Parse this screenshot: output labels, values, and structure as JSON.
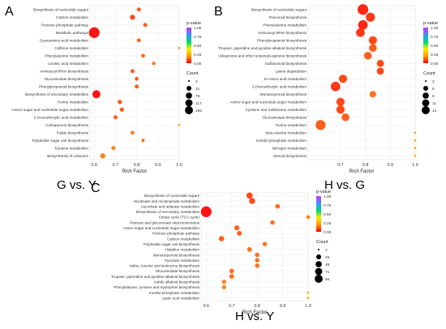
{
  "figure": {
    "legend_title": "p-value",
    "count_title": "Count",
    "rich_factor_label": "Rich Factor",
    "colorbar_ticks": [
      "1.00",
      "0.75",
      "0.50",
      "0.25",
      "0.00"
    ],
    "colors": {
      "low_p": "#ff0000",
      "mid_p": "#ff9900",
      "high_p": "#cc33ff",
      "grid": "#e6e6e6"
    }
  },
  "chart_data": [
    {
      "type": "scatter",
      "panel_label": "A",
      "caption": "G vs. Y",
      "xlabel": "Rich Factor",
      "xlim": [
        0.58,
        1.0
      ],
      "xticks": [
        {
          "v": 0.6,
          "label": "0.6"
        },
        {
          "v": 0.7,
          "label": "0.7"
        },
        {
          "v": 0.8,
          "label": "0.8"
        },
        {
          "v": 0.9,
          "label": "0.9"
        },
        {
          "v": 1.0,
          "label": "1.0"
        }
      ],
      "size_legend": [
        3,
        41,
        79,
        117,
        155
      ],
      "size_range": [
        3,
        155
      ],
      "categories": [
        "Biosynthesis of nucleotide sugars",
        "Carbon metabolism",
        "Pentose phosphate pathway",
        "Metabolic pathways",
        "Cyanoamino acid metabolism",
        "Caffeine metabolism",
        "Phenylalanine metabolism",
        "Linoleic acid metabolism",
        "Aminoacyl-tRNA biosynthesis",
        "Glucosinolate biosynthesis",
        "Phenylpropanoid biosynthesis",
        "Biosynthesis of secondary metabolites",
        "Purine metabolism",
        "Amino sugar and nucleotide sugar metabolism",
        "2-Oxocarboxylic acid metabolism",
        "Carbapenem biosynthesis",
        "Folate biosynthesis",
        "Polyketide sugar unit biosynthesis",
        "Tyrosine metabolism",
        "Biosynthesis of cofactors"
      ],
      "x": [
        0.81,
        0.78,
        0.84,
        0.6,
        0.81,
        1.0,
        0.83,
        0.88,
        0.78,
        0.8,
        0.8,
        0.61,
        0.72,
        0.73,
        0.7,
        1.0,
        0.78,
        0.83,
        0.69,
        0.64
      ],
      "p": [
        0.2,
        0.15,
        0.2,
        0.0,
        0.2,
        0.35,
        0.2,
        0.25,
        0.2,
        0.2,
        0.2,
        0.0,
        0.2,
        0.2,
        0.2,
        0.4,
        0.25,
        0.25,
        0.3,
        0.3
      ],
      "count": [
        10,
        20,
        10,
        155,
        8,
        3,
        8,
        6,
        10,
        8,
        10,
        75,
        12,
        12,
        10,
        3,
        8,
        5,
        10,
        20
      ]
    },
    {
      "type": "scatter",
      "panel_label": "B",
      "caption": "H vs. G",
      "xlabel": "Rich Factor",
      "xlim": [
        0.57,
        1.0
      ],
      "xticks": [
        {
          "v": 0.7,
          "label": "0.7"
        },
        {
          "v": 0.8,
          "label": "0.8"
        },
        {
          "v": 0.9,
          "label": "0.9"
        },
        {
          "v": 1.0,
          "label": "1.0"
        }
      ],
      "size_legend": [
        2,
        5,
        8,
        11,
        14
      ],
      "size_range": [
        2,
        14
      ],
      "categories": [
        "Biosynthesis of nucleotide sugars",
        "Flavonoid biosynthesis",
        "Phenylalanine metabolism",
        "Aminoacyl-tRNA biosynthesis",
        "Phenylpropanoid biosynthesis",
        "Tropane, piperidine and pyridine alkaloid biosynthesis",
        "Ubiquinone and other terpenoid-quinone biosynthesis",
        "Isoflavonoid biosynthesis",
        "Lysine degradation",
        "D-Amino acid metabolism",
        "2-Oxocarboxylic acid metabolism",
        "Monoterpenoid biosynthesis",
        "Amino sugar and nucleotide sugar metabolism",
        "Cysteine and methionine metabolism",
        "Glucosinolate biosynthesis",
        "Purine metabolism",
        "beta-Alanine metabolism",
        "Inositol phosphate metabolism",
        "Nitrogen metabolism",
        "Steroid biosynthesis"
      ],
      "x": [
        0.79,
        0.82,
        0.79,
        0.78,
        0.83,
        0.83,
        0.81,
        0.86,
        0.86,
        0.71,
        0.68,
        0.83,
        0.7,
        0.7,
        0.72,
        0.62,
        1.0,
        1.0,
        1.0,
        1.0
      ],
      "p": [
        0.05,
        0.1,
        0.05,
        0.1,
        0.15,
        0.2,
        0.2,
        0.15,
        0.15,
        0.15,
        0.1,
        0.25,
        0.15,
        0.15,
        0.2,
        0.2,
        0.4,
        0.4,
        0.4,
        0.4
      ],
      "count": [
        14,
        10,
        11,
        9,
        8,
        7,
        7,
        6,
        6,
        8,
        11,
        5,
        8,
        8,
        7,
        12,
        2,
        2,
        2,
        2
      ]
    },
    {
      "type": "scatter",
      "panel_label": "C",
      "caption": "H vs. Y",
      "xlabel": "Rich Factor",
      "xlim": [
        0.58,
        1.0
      ],
      "xticks": [
        {
          "v": 0.6,
          "label": "0.6"
        },
        {
          "v": 0.7,
          "label": "0.7"
        },
        {
          "v": 0.8,
          "label": "0.8"
        },
        {
          "v": 0.9,
          "label": "0.9"
        },
        {
          "v": 1.0,
          "label": "1.0"
        }
      ],
      "size_legend": [
        2,
        25,
        48,
        71,
        94
      ],
      "size_range": [
        2,
        94
      ],
      "categories": [
        "Biosynthesis of nucleotide sugars",
        "Nicotinate and nicotinamide metabolism",
        "Ascorbate and aldarate metabolism",
        "Biosynthesis of secondary metabolites",
        "Citrate cycle (TCA cycle)",
        "Pentose and glucuronate interconversions",
        "Amino sugar and nucleotide sugar metabolism",
        "Pentose phosphate pathway",
        "Carbon metabolism",
        "Polyketide sugar unit biosynthesis",
        "Histidine metabolism",
        "Monoterpenoid biosynthesis",
        "Pyruvate metabolism",
        "Valine, leucine and isoleucine biosynthesis",
        "Glucosinolate biosynthesis",
        "Tropane, piperidine and pyridine alkaloid biosynthesis",
        "Indole alkaloid biosynthesis",
        "Phenylalanine, tyrosine and tryptophan biosynthesis",
        "Inositol phosphate metabolism",
        "Lipoic acid metabolism"
      ],
      "x": [
        0.77,
        0.78,
        0.88,
        0.6,
        1.0,
        0.86,
        0.72,
        0.73,
        0.66,
        0.83,
        0.77,
        0.8,
        0.8,
        0.8,
        0.7,
        0.7,
        0.67,
        0.67,
        1.0,
        1.0
      ],
      "p": [
        0.15,
        0.15,
        0.25,
        0.0,
        0.3,
        0.25,
        0.2,
        0.2,
        0.2,
        0.25,
        0.25,
        0.25,
        0.25,
        0.25,
        0.25,
        0.25,
        0.3,
        0.3,
        0.4,
        0.4
      ],
      "count": [
        22,
        20,
        10,
        94,
        5,
        8,
        12,
        10,
        14,
        8,
        10,
        8,
        8,
        8,
        10,
        10,
        8,
        8,
        2,
        2
      ]
    }
  ]
}
